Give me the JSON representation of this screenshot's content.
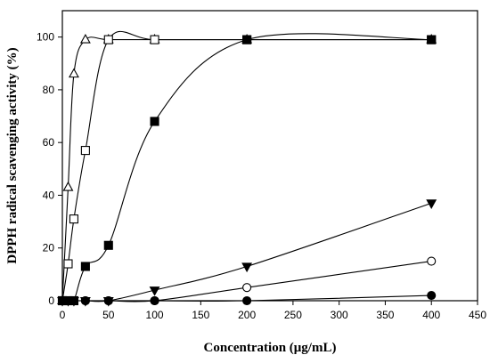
{
  "chart_data": {
    "type": "scatter",
    "title": "",
    "xlabel": "Concentration (μg/mL)",
    "ylabel": "DPPH radical scavenging activity (%)",
    "xlim": [
      0,
      450
    ],
    "ylim": [
      0,
      110
    ],
    "xticks": [
      0,
      50,
      100,
      150,
      200,
      250,
      300,
      350,
      400,
      450
    ],
    "yticks": [
      0,
      20,
      40,
      60,
      80,
      100
    ],
    "grid": false,
    "legend": "none",
    "series": [
      {
        "marker": "triangle-up",
        "filled": false,
        "x": [
          0,
          6.25,
          12.5,
          25,
          50,
          100,
          200,
          400
        ],
        "y": [
          0,
          43,
          86,
          99,
          99,
          99,
          99,
          99
        ]
      },
      {
        "marker": "square",
        "filled": false,
        "x": [
          0,
          6.25,
          12.5,
          25,
          50,
          100,
          200,
          400
        ],
        "y": [
          0,
          14,
          31,
          57,
          99,
          99,
          99,
          99
        ]
      },
      {
        "marker": "square",
        "filled": true,
        "x": [
          0,
          6.25,
          12.5,
          25,
          50,
          100,
          200,
          400
        ],
        "y": [
          0,
          0,
          0,
          13,
          21,
          68,
          99,
          99
        ]
      },
      {
        "marker": "triangle-down",
        "filled": true,
        "x": [
          0,
          6.25,
          12.5,
          25,
          50,
          100,
          200,
          400
        ],
        "y": [
          0,
          0,
          0,
          0,
          0,
          4,
          13,
          37
        ]
      },
      {
        "marker": "circle",
        "filled": false,
        "x": [
          0,
          6.25,
          12.5,
          25,
          50,
          100,
          200,
          400
        ],
        "y": [
          0,
          0,
          0,
          0,
          0,
          0,
          5,
          15
        ]
      },
      {
        "marker": "circle",
        "filled": true,
        "x": [
          0,
          6.25,
          12.5,
          25,
          50,
          100,
          200,
          400
        ],
        "y": [
          0,
          0,
          0,
          0,
          0,
          0,
          0,
          2
        ]
      }
    ]
  }
}
